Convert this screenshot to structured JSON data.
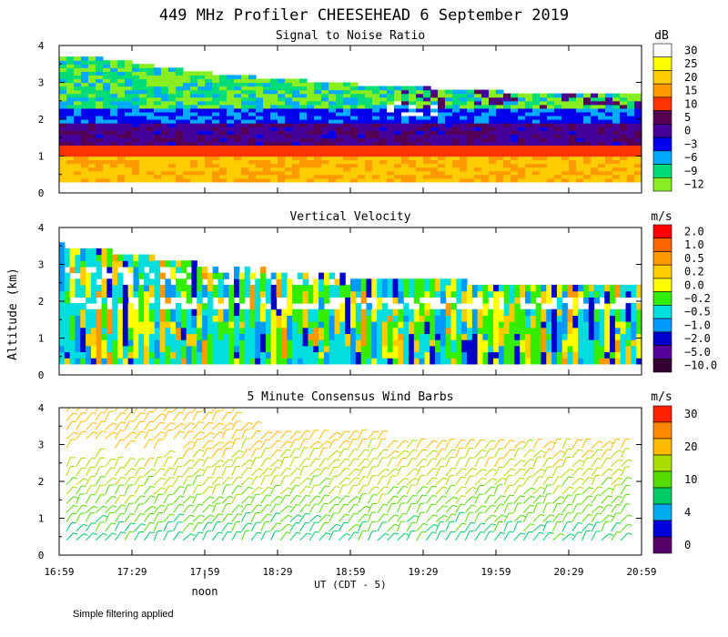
{
  "title": "449 MHz Profiler CHEESEHEAD  6 September 2019",
  "ylabel": "Altitude (km)",
  "xlabel": "UT  (CDT - 5)",
  "noon_label": "noon",
  "footnote": "Simple filtering applied",
  "xticks": [
    "16:59",
    "17:29",
    "17:59",
    "18:29",
    "18:59",
    "19:29",
    "19:59",
    "20:29",
    "20:59"
  ],
  "yticks": [
    "0",
    "1",
    "2",
    "3",
    "4"
  ],
  "panels": [
    {
      "title": "Signal to Noise Ratio",
      "unit": "dB",
      "legend": [
        {
          "label": "30",
          "color": "#ffffff"
        },
        {
          "label": "25",
          "color": "#ffff00"
        },
        {
          "label": "20",
          "color": "#ffcc00"
        },
        {
          "label": "15",
          "color": "#ff9900"
        },
        {
          "label": "10",
          "color": "#ff3300"
        },
        {
          "label": "5",
          "color": "#550055"
        },
        {
          "label": "0",
          "color": "#440099"
        },
        {
          "label": "−3",
          "color": "#0000ee"
        },
        {
          "label": "−6",
          "color": "#00aaff"
        },
        {
          "label": "−9",
          "color": "#00dd77"
        },
        {
          "label": "−12",
          "color": "#88ee22"
        }
      ]
    },
    {
      "title": "Vertical Velocity",
      "unit": "m/s",
      "legend": [
        {
          "label": "2.0",
          "color": "#ff0000"
        },
        {
          "label": "1.0",
          "color": "#ff6600"
        },
        {
          "label": "0.5",
          "color": "#ff9900"
        },
        {
          "label": "0.2",
          "color": "#ffcc00"
        },
        {
          "label": "0.0",
          "color": "#ffff00"
        },
        {
          "label": "−0.2",
          "color": "#33ee00"
        },
        {
          "label": "−0.5",
          "color": "#00dddd"
        },
        {
          "label": "−1.0",
          "color": "#0099ff"
        },
        {
          "label": "−2.0",
          "color": "#0000cc"
        },
        {
          "label": "−5.0",
          "color": "#550099"
        },
        {
          "label": "−10.0",
          "color": "#330033"
        }
      ]
    },
    {
      "title": "5 Minute Consensus Wind Barbs",
      "unit": "m/s",
      "legend": [
        {
          "label": "30",
          "color": "#ff2200"
        },
        {
          "label": "",
          "color": "#ff8800"
        },
        {
          "label": "20",
          "color": "#ffbb00"
        },
        {
          "label": "",
          "color": "#aadd00"
        },
        {
          "label": "10",
          "color": "#55dd00"
        },
        {
          "label": "",
          "color": "#00cc66"
        },
        {
          "label": "4",
          "color": "#00aaee"
        },
        {
          "label": "",
          "color": "#0000dd"
        },
        {
          "label": "0",
          "color": "#550066"
        }
      ]
    }
  ],
  "chart_data": [
    {
      "type": "heatmap",
      "title": "Signal to Noise Ratio",
      "unit": "dB",
      "x_range": [
        "16:59",
        "20:59"
      ],
      "ylim": [
        0,
        4
      ],
      "ylabel": "Altitude (km)",
      "layers_description_km": [
        {
          "from": 0.3,
          "to": 1.0,
          "snr_db": "15 to 25"
        },
        {
          "from": 1.0,
          "to": 1.3,
          "snr_db": "10"
        },
        {
          "from": 1.3,
          "to": 1.8,
          "snr_db": "0 to 5"
        },
        {
          "from": 1.8,
          "to": 2.3,
          "snr_db": "-3"
        },
        {
          "from": 2.3,
          "to": 3.7,
          "snr_db": "-6 to -12"
        }
      ],
      "top_of_data_km": {
        "16:59": 3.75,
        "17:59": 3.2,
        "18:59": 2.9,
        "19:59": 2.7,
        "20:59": 2.6
      }
    },
    {
      "type": "heatmap",
      "title": "Vertical Velocity",
      "unit": "m/s",
      "x_range": [
        "16:59",
        "20:59"
      ],
      "ylim": [
        0,
        4
      ],
      "value_range": [
        -10.0,
        2.0
      ],
      "dominant_values": [
        -0.5,
        -0.2,
        0.0,
        0.2
      ]
    },
    {
      "type": "scatter",
      "subtype": "wind_barbs",
      "title": "5 Minute Consensus Wind Barbs",
      "unit": "m/s",
      "x_range": [
        "16:59",
        "20:59"
      ],
      "ylim": [
        0,
        4
      ],
      "speed_range": [
        0,
        30
      ],
      "typical_speed_by_height_km": {
        "0.5": 8,
        "1.0": 10,
        "2.0": 15,
        "3.0": 18,
        "4.0": 20
      }
    }
  ]
}
